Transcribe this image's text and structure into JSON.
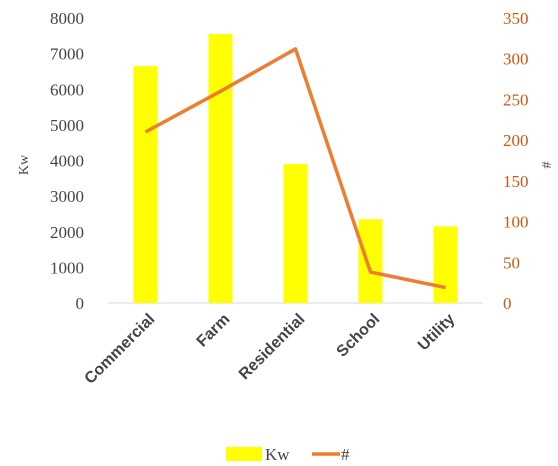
{
  "chart_data": {
    "type": "bar",
    "categories": [
      "Commercial",
      "Farm",
      "Residential",
      "School",
      "Utility"
    ],
    "series": [
      {
        "name": "Kw",
        "type": "bar",
        "axis": "left",
        "color": "#ffff00",
        "values": [
          6650,
          7550,
          3900,
          2350,
          2150
        ]
      },
      {
        "name": "#",
        "type": "line",
        "axis": "right",
        "color": "#ed7d31",
        "values": [
          210,
          260,
          312,
          38,
          19
        ]
      }
    ],
    "ylabel": "Kw",
    "ylabel_right": "#",
    "ylim": [
      0,
      8000
    ],
    "ylim_right": [
      0,
      350
    ],
    "yticks": [
      "0",
      "1000",
      "2000",
      "3000",
      "4000",
      "5000",
      "6000",
      "7000",
      "8000"
    ],
    "yticks_right": [
      "0",
      "50",
      "100",
      "150",
      "200",
      "250",
      "300",
      "350"
    ],
    "grid": false,
    "legend_position": "bottom"
  }
}
